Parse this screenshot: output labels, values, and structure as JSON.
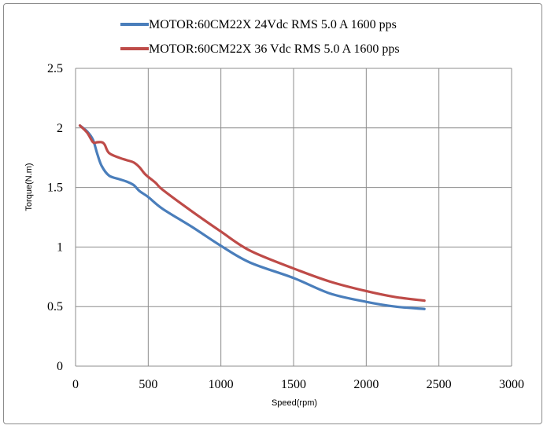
{
  "chart_data": {
    "type": "line",
    "title": "",
    "xlabel": "Speed(rpm)",
    "ylabel": "Torque(N.m)",
    "xlim": [
      0,
      3000
    ],
    "ylim": [
      0,
      2.5
    ],
    "xticks": [
      "0",
      "500",
      "1000",
      "1500",
      "2000",
      "2500",
      "3000"
    ],
    "yticks": [
      "0",
      "0.5",
      "1",
      "1.5",
      "2",
      "2.5"
    ],
    "grid": true,
    "legend_position": "top",
    "series": [
      {
        "name": "MOTOR:60CM22X 24Vdc  RMS 5.0 A  1600 pps",
        "color": "#4a7ebb",
        "x": [
          30,
          80,
          120,
          150,
          180,
          230,
          300,
          350,
          400,
          440,
          500,
          600,
          800,
          1000,
          1200,
          1500,
          1750,
          2000,
          2200,
          2400
        ],
        "y": [
          2.02,
          1.97,
          1.9,
          1.78,
          1.68,
          1.6,
          1.57,
          1.55,
          1.52,
          1.47,
          1.42,
          1.32,
          1.17,
          1.01,
          0.87,
          0.74,
          0.61,
          0.54,
          0.5,
          0.48
        ]
      },
      {
        "name": "MOTOR:60CM22X 36 Vdc  RMS 5.0 A  1600 pps",
        "color": "#be4b48",
        "x": [
          30,
          80,
          120,
          150,
          180,
          200,
          230,
          300,
          350,
          400,
          440,
          480,
          550,
          600,
          800,
          1000,
          1200,
          1500,
          1750,
          2000,
          2200,
          2400
        ],
        "y": [
          2.02,
          1.96,
          1.88,
          1.88,
          1.88,
          1.86,
          1.79,
          1.75,
          1.73,
          1.71,
          1.67,
          1.61,
          1.54,
          1.48,
          1.3,
          1.13,
          0.97,
          0.82,
          0.71,
          0.63,
          0.58,
          0.55
        ]
      }
    ]
  }
}
